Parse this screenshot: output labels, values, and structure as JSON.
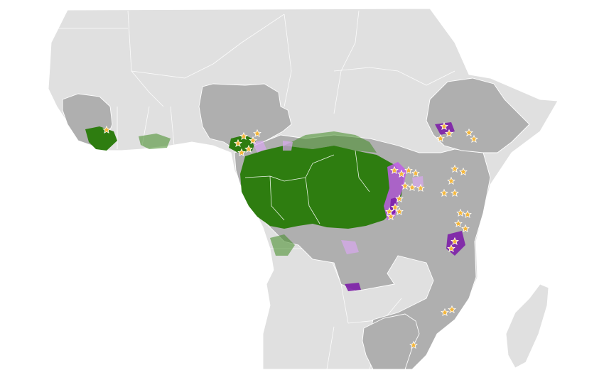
{
  "map": {
    "colors": {
      "background_countries": "#e0e0e0",
      "study_countries": "#afafaf",
      "forest": "#2e7d10",
      "range": "#c05ee8",
      "range_dark": "#7d1fa8",
      "site_marker": "#f4b63a"
    },
    "site_marker_icon": "star-icon"
  }
}
